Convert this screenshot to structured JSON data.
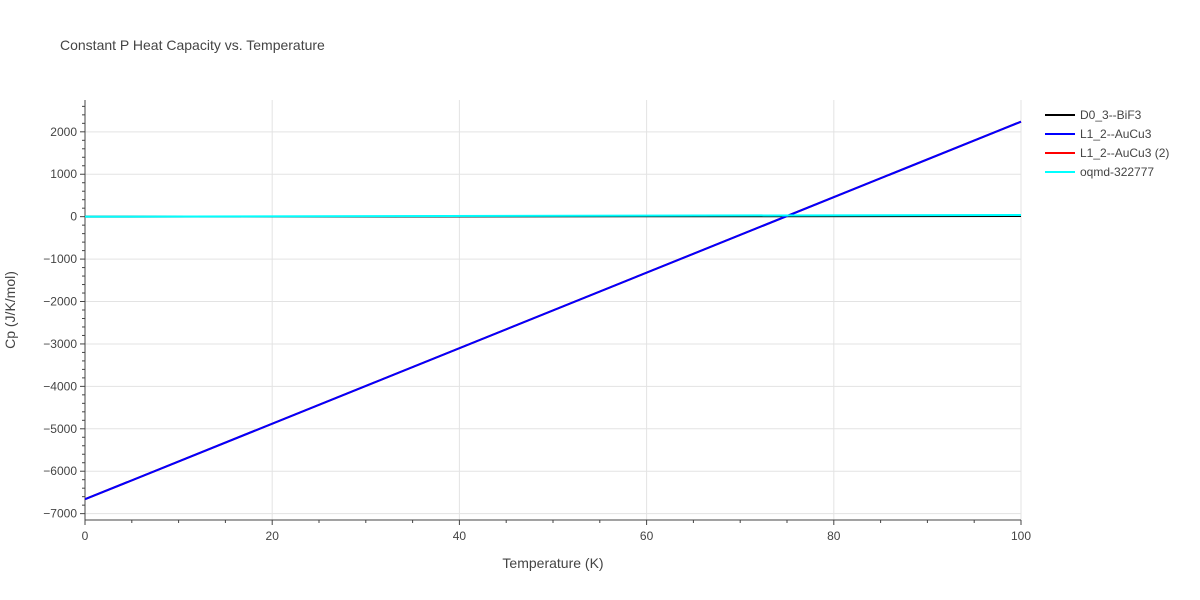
{
  "chart_data": {
    "type": "line",
    "title": "Constant P Heat Capacity vs. Temperature",
    "xlabel": "Temperature (K)",
    "ylabel": "Cp (J/K/mol)",
    "xlim": [
      0,
      100
    ],
    "ylim": [
      -7150,
      2750
    ],
    "x_ticks": [
      0,
      20,
      40,
      60,
      80,
      100
    ],
    "y_ticks": [
      -7000,
      -6000,
      -5000,
      -4000,
      -3000,
      -2000,
      -1000,
      0,
      1000,
      2000
    ],
    "y_tick_labels": [
      "−7000",
      "−6000",
      "−5000",
      "−4000",
      "−3000",
      "−2000",
      "−1000",
      "0",
      "1000",
      "2000"
    ],
    "grid": true,
    "legend_position": "top-right",
    "series": [
      {
        "name": "D0_3--BiF3",
        "color": "#000000",
        "x": [
          0,
          100
        ],
        "y": [
          0,
          15
        ]
      },
      {
        "name": "L1_2--AuCu3",
        "color": "#0000ff",
        "x": [
          0,
          100
        ],
        "y": [
          -6660,
          2240
        ]
      },
      {
        "name": "L1_2--AuCu3 (2)",
        "color": "#ff0000",
        "x": [
          0,
          100
        ],
        "y": [
          -6660,
          2240
        ]
      },
      {
        "name": "oqmd-322777",
        "color": "#00ffff",
        "x": [
          0,
          100
        ],
        "y": [
          0,
          40
        ]
      }
    ],
    "draw_order": [
      0,
      2,
      1,
      3
    ]
  }
}
